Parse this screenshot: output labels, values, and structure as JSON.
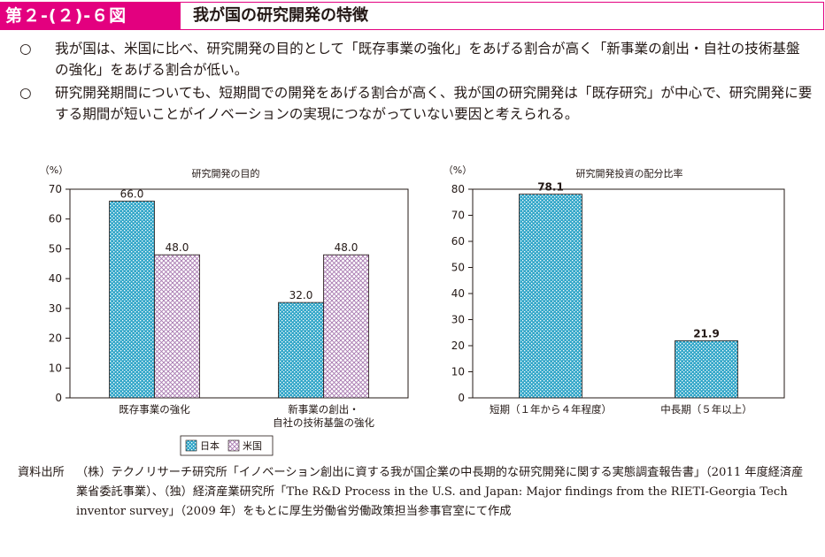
{
  "header": {
    "label": "第２-(２)-６図",
    "title": "我が国の研究開発の特徴"
  },
  "bullets": [
    {
      "mark": "○",
      "text": "我が国は、米国に比べ、研究開発の目的として「既存事業の強化」をあげる割合が高く「新事業の創出・自社の技術基盤の強化」をあげる割合が低い。"
    },
    {
      "mark": "○",
      "text": "研究開発期間についても、短期間での開発をあげる割合が高く、我が国の研究開発は「既存研究」が中心で、研究開発に要する期間が短いことがイノベーションの実現につながっていない要因と考えられる。"
    }
  ],
  "chart_data": [
    {
      "type": "bar",
      "title": "研究開発の目的",
      "unit": "（%）",
      "categories": [
        "既存事業の強化",
        [
          "新事業の創出・",
          "自社の技術基盤の強化"
        ]
      ],
      "series": [
        {
          "name": "日本",
          "values": [
            66.0,
            32.0
          ],
          "labels": [
            "66.0",
            "32.0"
          ],
          "color": "#34a7c9",
          "pattern": "dots"
        },
        {
          "name": "米国",
          "values": [
            48.0,
            48.0
          ],
          "labels": [
            "48.0",
            "48.0"
          ],
          "color": "#b58bbb",
          "pattern": "crosshatch"
        }
      ],
      "ylim": [
        0,
        70
      ],
      "yticks": [
        "0",
        "10",
        "20",
        "30",
        "40",
        "50",
        "60",
        "70"
      ],
      "grid": false,
      "legend": "bottom"
    },
    {
      "type": "bar",
      "title": "研究開発投資の配分比率",
      "unit": "（%）",
      "categories": [
        "短期（１年から４年程度）",
        "中長期（５年以上）"
      ],
      "series": [
        {
          "name": "日本",
          "values": [
            78.1,
            21.9
          ],
          "labels": [
            "78.1",
            "21.9"
          ],
          "color": "#34a7c9",
          "pattern": "dots"
        }
      ],
      "ylim": [
        0,
        80
      ],
      "yticks": [
        "0",
        "10",
        "20",
        "30",
        "40",
        "50",
        "60",
        "70",
        "80"
      ],
      "grid": false
    }
  ],
  "source": {
    "label": "資料出所",
    "text": "（株）テクノリサーチ研究所「イノベーション創出に資する我が国企業の中長期的な研究開発に関する実態調査報告書」（2011 年度経済産業省委託事業）、（独）経済産業研究所「The R&D Process in the U.S. and Japan: Major findings from the RIETI-Georgia Tech inventor survey」（2009 年）をもとに厚生労働省労働政策担当参事官室にて作成"
  }
}
